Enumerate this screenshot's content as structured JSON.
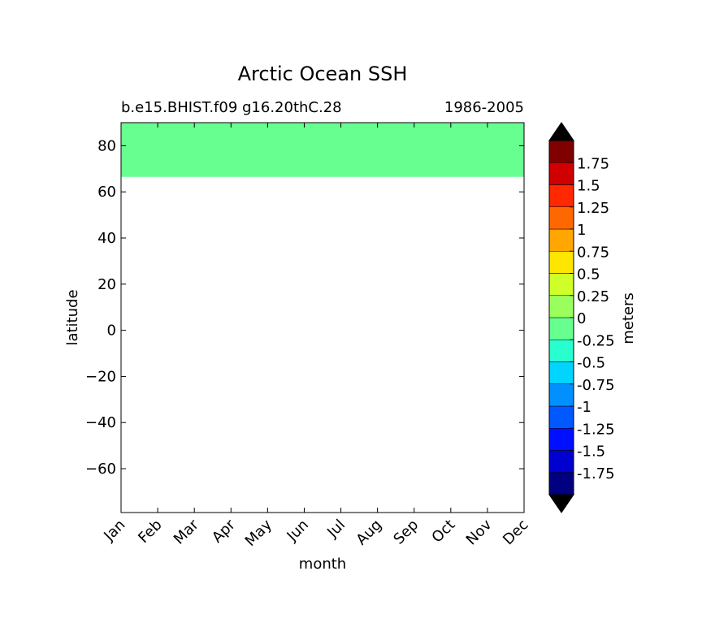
{
  "chart_data": {
    "type": "heatmap",
    "title": "Arctic Ocean SSH",
    "subtitle_left": "b.e15.BHIST.f09 g16.20thC.28",
    "subtitle_right": "1986-2005",
    "xlabel": "month",
    "ylabel": "latitude",
    "x_categories": [
      "Jan",
      "Feb",
      "Mar",
      "Apr",
      "May",
      "Jun",
      "Jul",
      "Aug",
      "Sep",
      "Oct",
      "Nov",
      "Dec"
    ],
    "ylim": [
      -79,
      90
    ],
    "y_ticks": [
      80,
      60,
      40,
      20,
      0,
      -20,
      -40,
      -60
    ],
    "y_tick_labels": [
      "80",
      "60",
      "40",
      "20",
      "0",
      "−20",
      "−40",
      "−60"
    ],
    "filled_region": {
      "lat_min": 66.5,
      "lat_max": 90,
      "value_range": [
        -0.25,
        0
      ],
      "color": "#66ff90"
    },
    "colorbar": {
      "label": "meters",
      "levels": [
        -2,
        -1.75,
        -1.5,
        -1.25,
        -1,
        -0.75,
        -0.5,
        -0.25,
        0,
        0.25,
        0.5,
        0.75,
        1,
        1.25,
        1.5,
        1.75,
        2
      ],
      "tick_labels": [
        "-1.75",
        "-1.5",
        "-1.25",
        "-1",
        "-0.75",
        "-0.5",
        "-0.25",
        "0",
        "0.25",
        "0.5",
        "0.75",
        "1",
        "1.25",
        "1.5",
        "1.75"
      ],
      "colors": [
        "#000080",
        "#0000d0",
        "#0010ff",
        "#0058ff",
        "#0090ff",
        "#00d4ff",
        "#29ffce",
        "#66ff90",
        "#9aff5c",
        "#ceff29",
        "#ffe600",
        "#ffa600",
        "#ff6800",
        "#ff2800",
        "#d00000",
        "#800000"
      ],
      "under_color": "#000000",
      "over_color": "#000000"
    }
  }
}
